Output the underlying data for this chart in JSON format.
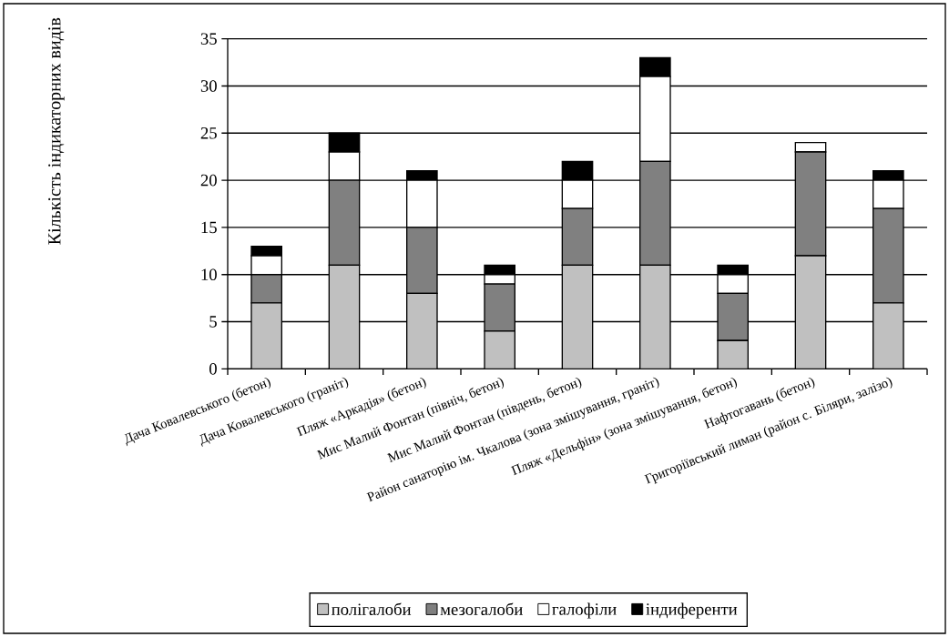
{
  "chart_data": {
    "type": "bar",
    "stacked": true,
    "ylabel": "Кількість індикаторних видів",
    "categories": [
      "Дача Ковалевського (бетон)",
      "Дача Ковалевського (граніт)",
      "Пляж «Аркадія» (бетон)",
      "Мис Малий Фонтан (північ, бетон)",
      "Мис Малий Фонтан (південь, бетон)",
      "Район санаторію ім. Чкалова (зона змішування, граніт)",
      "Пляж «Дельфін» (зона змішування, бетон)",
      "Нафтогавань (бетон)",
      "Григоріївський лиман (район с. Біляри, залізо)"
    ],
    "series": [
      {
        "name": "полігалоби",
        "color": "#c0c0c0",
        "values": [
          7,
          11,
          8,
          4,
          11,
          11,
          3,
          12,
          7
        ]
      },
      {
        "name": "мезогалоби",
        "color": "#808080",
        "values": [
          3,
          9,
          7,
          5,
          6,
          11,
          5,
          11,
          10
        ]
      },
      {
        "name": "галофіли",
        "color": "#ffffff",
        "values": [
          2,
          3,
          5,
          1,
          3,
          9,
          2,
          1,
          3
        ]
      },
      {
        "name": "індиференти",
        "color": "#000000",
        "values": [
          1,
          2,
          1,
          1,
          2,
          2,
          1,
          0,
          1
        ]
      }
    ],
    "ylim": [
      0,
      35
    ],
    "yticks": [
      0,
      5,
      10,
      15,
      20,
      25,
      30,
      35
    ],
    "grid": "y",
    "legend": "bottom"
  }
}
